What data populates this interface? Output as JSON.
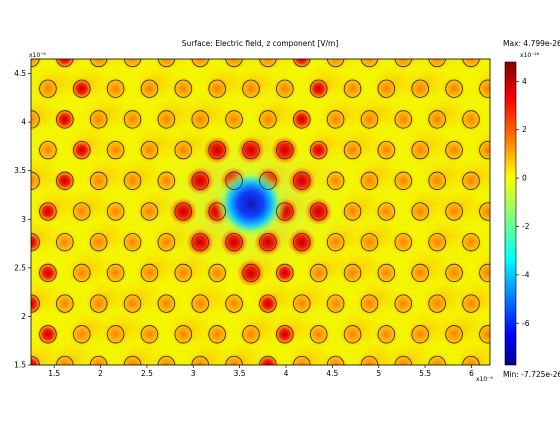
{
  "chart_data": {
    "type": "heatmap",
    "title": "Surface: Electric field, z component [V/m]",
    "xlabel": "",
    "ylabel": "",
    "x_multiplier": "x10⁻⁶",
    "y_multiplier": "x10⁻⁶",
    "xlim": [
      1.25,
      6.2
    ],
    "ylim": [
      1.5,
      4.65
    ],
    "x_ticks": [
      1.5,
      2,
      2.5,
      3,
      3.5,
      4,
      4.5,
      5,
      5.5,
      6
    ],
    "y_ticks": [
      1.5,
      2,
      2.5,
      3,
      3.5,
      4,
      4.5
    ],
    "lattice": {
      "spacing_x": 0.365,
      "row_spacing_y": 0.316,
      "row_offset_x": 0.1825,
      "rod_radius": 0.09,
      "defect_center": [
        3.62,
        3.16
      ]
    },
    "colorbar": {
      "multiplier": "x10⁻²⁶",
      "ticks": [
        4,
        2,
        0,
        -2,
        -4,
        -6
      ],
      "max_label": "Max: 4.799e-26",
      "min_label": "Min: -7.725e-26",
      "max": 4.799,
      "min": -7.725,
      "colormap": [
        "#00008f",
        "#0000ff",
        "#00ffff",
        "#ffff00",
        "#ff8000",
        "#ff0000",
        "#800000"
      ]
    },
    "grid": false
  }
}
